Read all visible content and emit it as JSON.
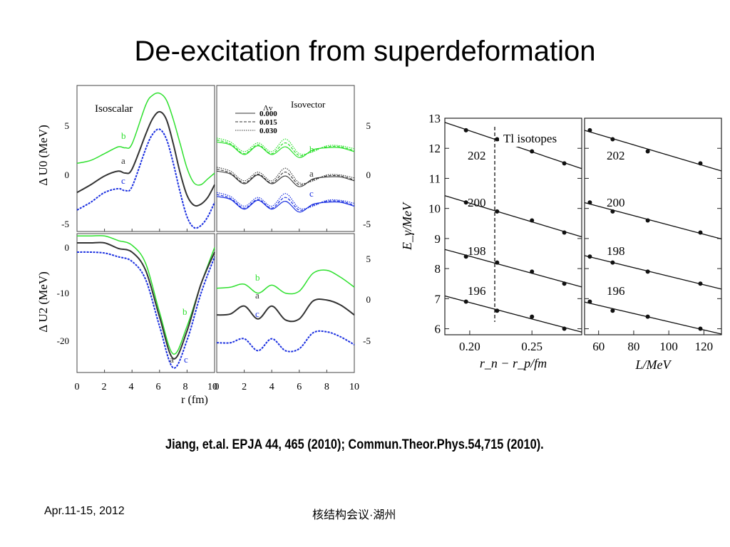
{
  "slide": {
    "title": "De-excitation from superdeformation",
    "citation": "Jiang, et.al. EPJA 44, 465 (2010); Commun.Theor.Phys.54,715 (2010).",
    "footer_date": "Apr.11-15, 2012",
    "footer_conference": "核结构会议·湖州"
  },
  "colors": {
    "green": "#2ee02e",
    "black": "#333333",
    "blue": "#1a2fe0"
  },
  "left_figure": {
    "xlabel": "r (fm)",
    "x_ticks": [
      "0",
      "2",
      "4",
      "6",
      "8",
      "10"
    ],
    "top_ylabel": "Δ U0 (MeV)",
    "bottom_ylabel": "Δ U2 (MeV)",
    "top_left_yticks": [
      "5",
      "0",
      "-5"
    ],
    "top_right_yticks": [
      "5",
      "0",
      "-5"
    ],
    "bottom_left_yticks": [
      "0",
      "-10",
      "-20"
    ],
    "bottom_right_yticks": [
      "5",
      "0",
      "-5"
    ],
    "isoscalar_label": "Isoscalar",
    "isovector_label": "Isovector",
    "legend_title": "Λv",
    "legend_entries": [
      "0.000",
      "0.015",
      "0.030"
    ],
    "curve_labels": [
      "a",
      "b",
      "c"
    ]
  },
  "chart_data": [
    {
      "type": "line",
      "title": "Isoscalar",
      "xlabel": "r (fm)",
      "ylabel": "Δ U0 (MeV)",
      "xlim": [
        0,
        10
      ],
      "ylim": [
        -6,
        9
      ],
      "series": [
        {
          "name": "b",
          "x": [
            0,
            1,
            2,
            3,
            3.5,
            4,
            5,
            5.5,
            6,
            6.5,
            7,
            7.5,
            8,
            8.5,
            9,
            9.5,
            10
          ],
          "y": [
            1.0,
            1.3,
            2.0,
            2.7,
            2.6,
            3.0,
            7.0,
            8.0,
            8.2,
            7.5,
            5.5,
            3.0,
            0.5,
            -1.0,
            -1.2,
            -0.6,
            0.0
          ]
        },
        {
          "name": "a",
          "x": [
            0,
            1,
            2,
            3,
            3.5,
            4,
            5,
            5.5,
            6,
            6.5,
            7,
            7.5,
            8,
            8.5,
            9,
            9.5,
            10
          ],
          "y": [
            -2.0,
            -1.2,
            -0.3,
            0.2,
            0.0,
            0.4,
            4.0,
            5.6,
            6.3,
            5.5,
            3.0,
            0.0,
            -2.3,
            -3.3,
            -3.2,
            -2.5,
            -1.2
          ]
        },
        {
          "name": "c",
          "x": [
            0,
            1,
            2,
            3,
            3.5,
            4,
            5,
            5.5,
            6,
            6.5,
            7,
            7.5,
            8,
            8.5,
            9,
            9.5,
            10
          ],
          "y": [
            -3.8,
            -3.0,
            -2.0,
            -1.6,
            -1.8,
            -1.4,
            2.5,
            4.0,
            4.5,
            3.5,
            1.0,
            -2.0,
            -4.5,
            -5.6,
            -5.4,
            -4.5,
            -3.0
          ]
        }
      ]
    },
    {
      "type": "line",
      "title": "Isovector",
      "xlabel": "r (fm)",
      "ylabel": "",
      "xlim": [
        0,
        10
      ],
      "ylim": [
        -6,
        9
      ],
      "series": [
        {
          "name": "0.000",
          "x": [
            0,
            1,
            2,
            3,
            4,
            5,
            6,
            7,
            8,
            9,
            10
          ],
          "y": [
            0.2,
            -0.1,
            -1.1,
            -0.2,
            -1.1,
            -0.3,
            -1.4,
            -0.6,
            -0.4,
            -0.4,
            -0.8
          ]
        },
        {
          "name": "0.015",
          "x": [
            0,
            1,
            2,
            3,
            4,
            5,
            6,
            7,
            8,
            9,
            10
          ],
          "y": [
            0.4,
            0.0,
            -1.0,
            -0.1,
            -1.0,
            0.1,
            -1.2,
            -0.7,
            -0.3,
            -0.3,
            -0.7
          ]
        },
        {
          "name": "0.030",
          "x": [
            0,
            1,
            2,
            3,
            4,
            5,
            6,
            7,
            8,
            9,
            10
          ],
          "y": [
            0.6,
            0.2,
            -0.8,
            0.1,
            -0.8,
            0.5,
            -1.0,
            -0.8,
            -0.2,
            -0.2,
            -0.5
          ]
        }
      ]
    },
    {
      "type": "line",
      "title": "",
      "xlabel": "r (fm)",
      "ylabel": "Δ U2 (MeV)",
      "xlim": [
        0,
        10
      ],
      "ylim": [
        -27,
        3
      ],
      "series": [
        {
          "name": "b",
          "x": [
            0,
            1,
            2,
            3,
            4,
            5,
            6,
            7,
            8,
            9,
            10
          ],
          "y": [
            2.5,
            2.5,
            2.5,
            1.5,
            0.5,
            -3.5,
            -14,
            -23,
            -17,
            -8,
            0
          ]
        },
        {
          "name": "a",
          "x": [
            0,
            1,
            2,
            3,
            4,
            5,
            6,
            7,
            8,
            9,
            10
          ],
          "y": [
            1.0,
            1.0,
            1.0,
            -0.2,
            -1.0,
            -5.0,
            -15,
            -24,
            -18,
            -8,
            -1
          ]
        },
        {
          "name": "c",
          "x": [
            0,
            1,
            2,
            3,
            4,
            5,
            6,
            7,
            8,
            9,
            10
          ],
          "y": [
            -1.0,
            -1.0,
            -1.2,
            -2.0,
            -3.0,
            -7.0,
            -17,
            -26,
            -20,
            -10,
            -2
          ]
        }
      ]
    },
    {
      "type": "line",
      "title": "",
      "xlabel": "r (fm)",
      "ylabel": "",
      "xlim": [
        0,
        10
      ],
      "ylim": [
        -6,
        8
      ],
      "series": [
        {
          "name": "b",
          "x": [
            0,
            1,
            2,
            3,
            4,
            5,
            6,
            7,
            8,
            9,
            10
          ],
          "y": [
            2.5,
            2.6,
            2.9,
            2.0,
            2.8,
            2.0,
            2.2,
            4.0,
            4.3,
            3.6,
            2.6
          ]
        },
        {
          "name": "a",
          "x": [
            0,
            1,
            2,
            3,
            4,
            5,
            6,
            7,
            8,
            9,
            10
          ],
          "y": [
            -0.2,
            -0.1,
            0.7,
            -0.6,
            0.7,
            -0.7,
            -0.6,
            1.2,
            1.3,
            0.8,
            -0.2
          ]
        },
        {
          "name": "c",
          "x": [
            0,
            1,
            2,
            3,
            4,
            5,
            6,
            7,
            8,
            9,
            10
          ],
          "y": [
            -3.0,
            -3.0,
            -2.6,
            -3.8,
            -2.6,
            -3.8,
            -3.6,
            -2.0,
            -1.9,
            -2.4,
            -3.2
          ]
        }
      ]
    },
    {
      "type": "scatter",
      "title": "",
      "xlabel": "r_n − r_p/fm",
      "ylabel": "E_γ/MeV",
      "xlim": [
        0.18,
        0.29
      ],
      "ylim": [
        5.8,
        13
      ],
      "annotation": "Tl isotopes",
      "x_ticks": [
        "0.20",
        "0.25"
      ],
      "y_ticks": [
        "6",
        "7",
        "8",
        "9",
        "10",
        "11",
        "12",
        "13"
      ],
      "series": [
        {
          "name": "202",
          "x": [
            0.197,
            0.222,
            0.25,
            0.276
          ],
          "y": [
            12.6,
            12.3,
            11.9,
            11.5
          ]
        },
        {
          "name": "200",
          "x": [
            0.197,
            0.222,
            0.25,
            0.276
          ],
          "y": [
            10.2,
            9.9,
            9.6,
            9.2
          ]
        },
        {
          "name": "198",
          "x": [
            0.197,
            0.222,
            0.25,
            0.276
          ],
          "y": [
            8.4,
            8.2,
            7.9,
            7.5
          ]
        },
        {
          "name": "196",
          "x": [
            0.197,
            0.222,
            0.25,
            0.276
          ],
          "y": [
            6.9,
            6.6,
            6.4,
            6.0
          ]
        }
      ]
    },
    {
      "type": "scatter",
      "title": "",
      "xlabel": "L/MeV",
      "ylabel": "",
      "xlim": [
        52,
        130
      ],
      "ylim": [
        5.8,
        13
      ],
      "x_ticks": [
        "60",
        "80",
        "100",
        "120"
      ],
      "series": [
        {
          "name": "202",
          "x": [
            55,
            68,
            88,
            118
          ],
          "y": [
            12.6,
            12.3,
            11.9,
            11.5
          ]
        },
        {
          "name": "200",
          "x": [
            55,
            68,
            88,
            118
          ],
          "y": [
            10.2,
            9.9,
            9.6,
            9.2
          ]
        },
        {
          "name": "198",
          "x": [
            55,
            68,
            88,
            118
          ],
          "y": [
            8.4,
            8.2,
            7.9,
            7.5
          ]
        },
        {
          "name": "196",
          "x": [
            55,
            68,
            88,
            118
          ],
          "y": [
            6.9,
            6.6,
            6.4,
            6.0
          ]
        }
      ]
    }
  ]
}
